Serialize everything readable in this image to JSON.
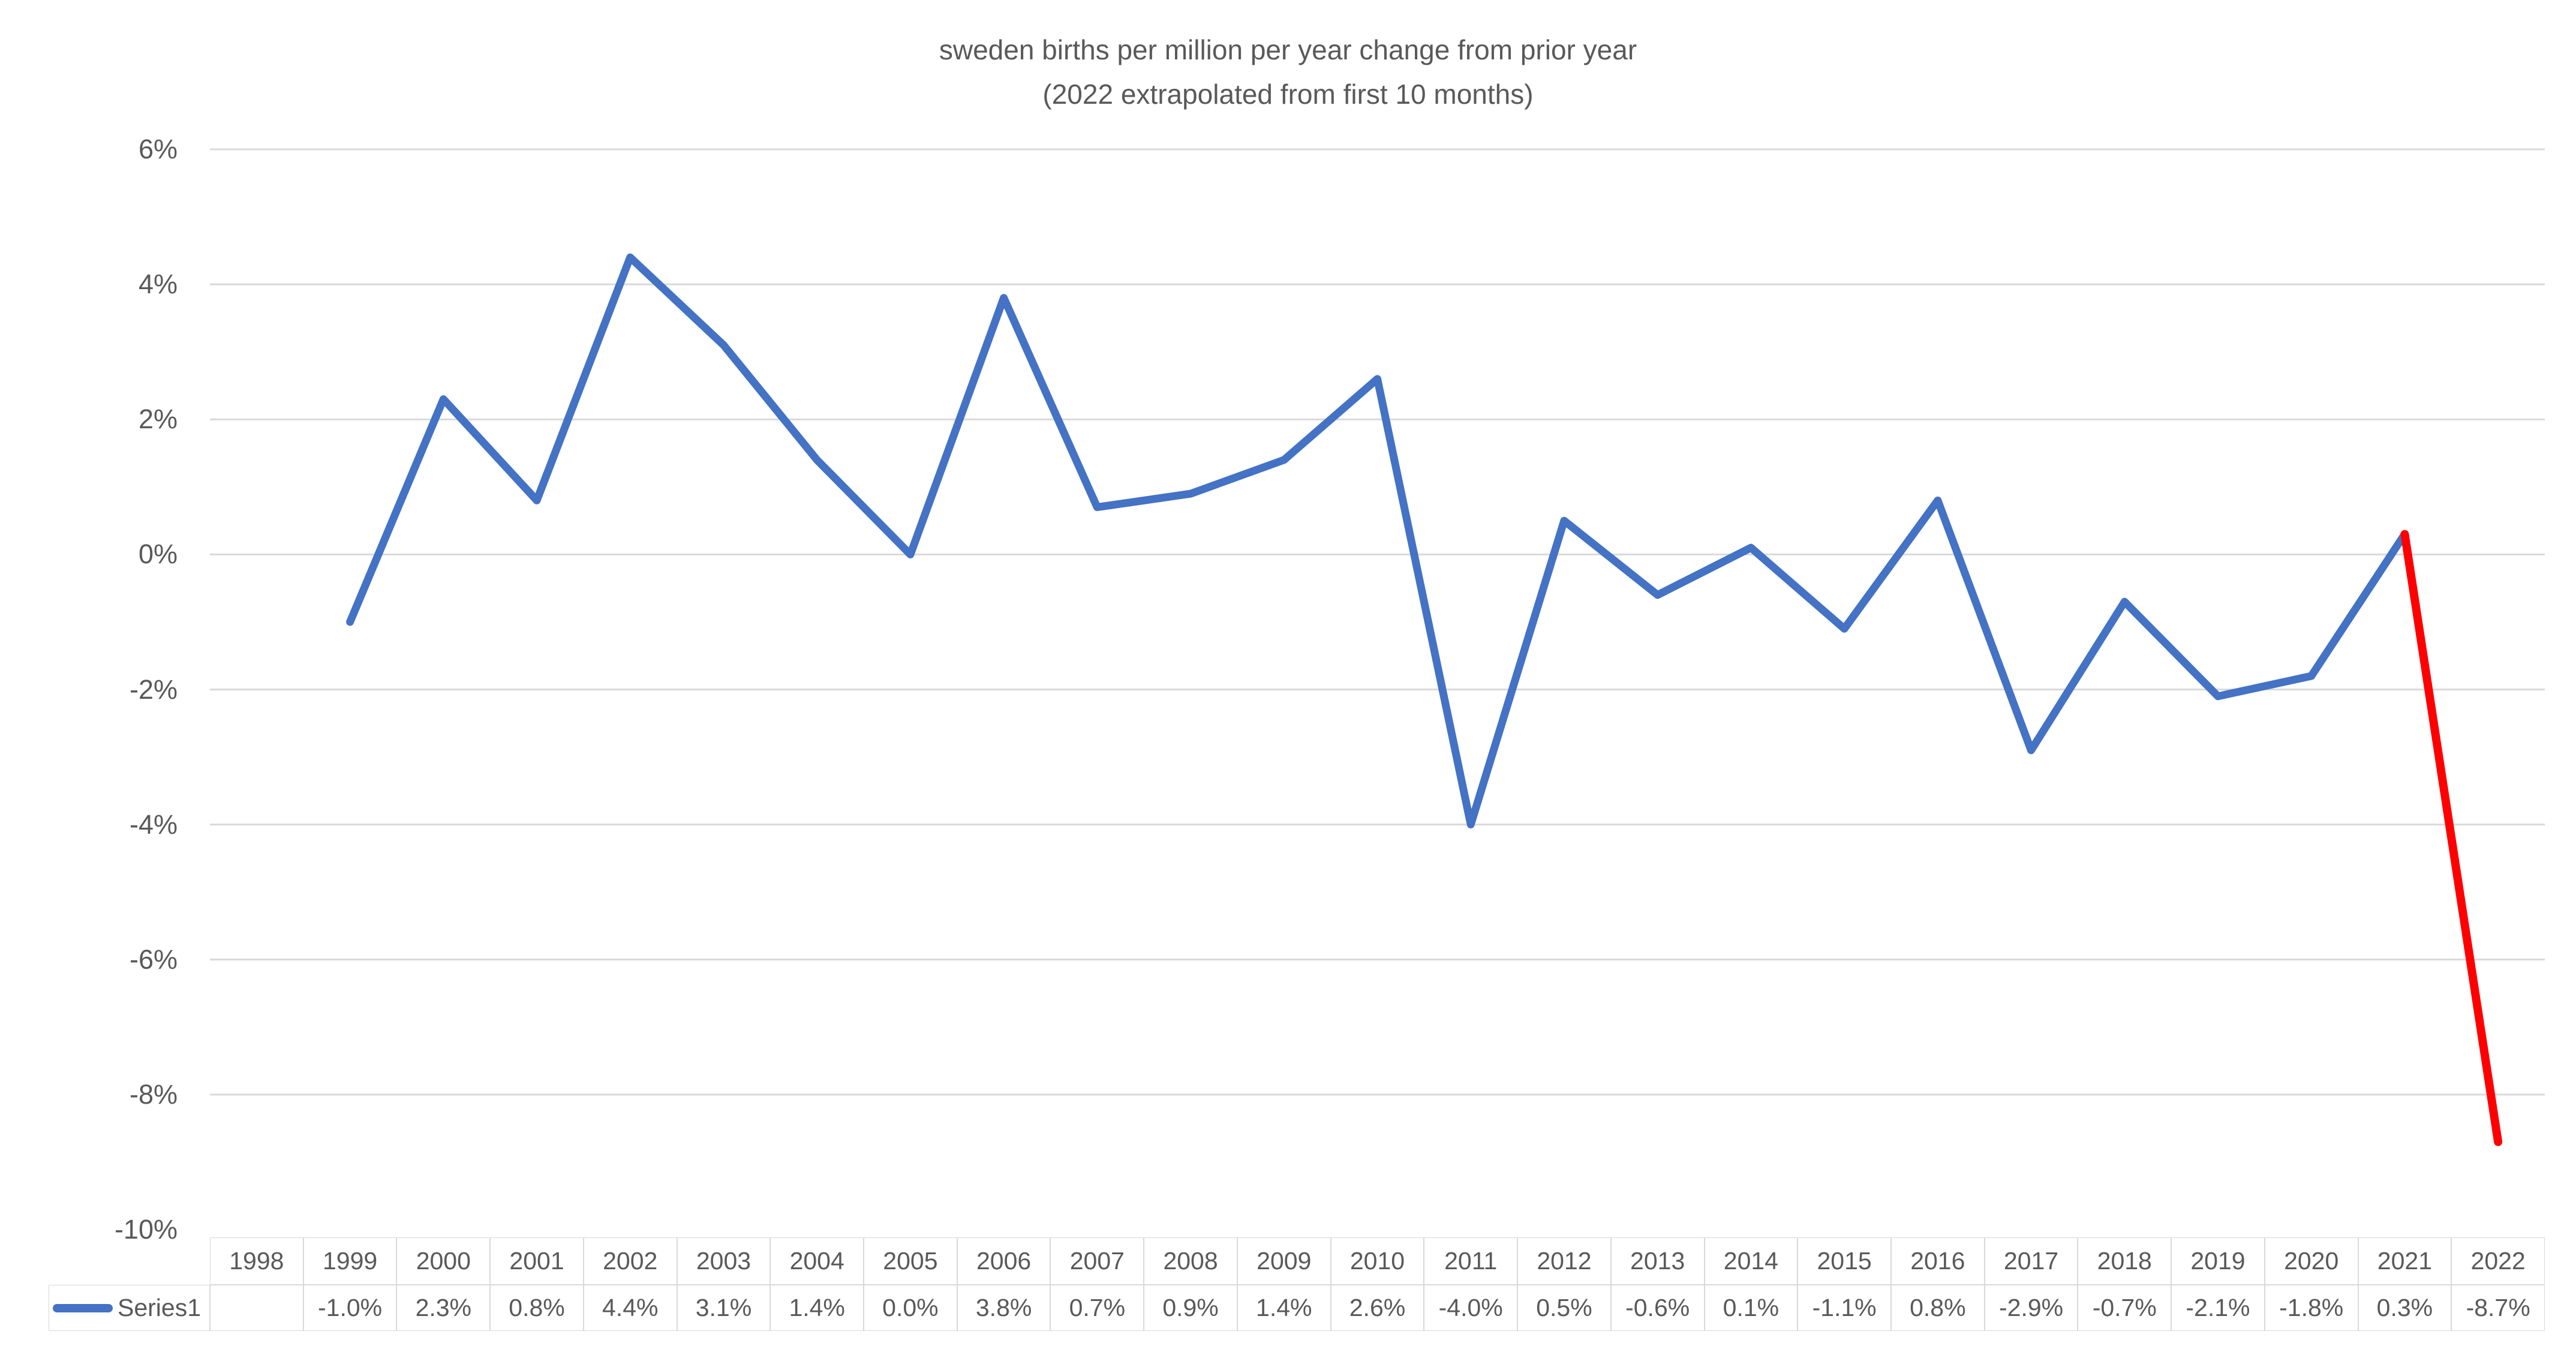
{
  "title": "sweden births per million per year change from prior year",
  "subtitle": "(2022 extrapolated from first 10 months)",
  "legend": {
    "series_label": "Series1"
  },
  "colors": {
    "series_blue": "#4472C4",
    "extrapolated_red": "#FF0000",
    "gridline": "#D9D9D9",
    "table_border": "#D9D9D9",
    "text": "#595959"
  },
  "y_axis": {
    "tick_labels": [
      "6%",
      "4%",
      "2%",
      "0%",
      "-2%",
      "-4%",
      "-6%",
      "-8%",
      "-10%"
    ],
    "tick_values": [
      6,
      4,
      2,
      0,
      -2,
      -4,
      -6,
      -8,
      -10
    ],
    "min": -10,
    "max": 6
  },
  "chart_data": {
    "type": "line",
    "title": "sweden births per million per year change from prior year",
    "subtitle": "(2022 extrapolated from first 10 months)",
    "categories": [
      "1998",
      "1999",
      "2000",
      "2001",
      "2002",
      "2003",
      "2004",
      "2005",
      "2006",
      "2007",
      "2008",
      "2009",
      "2010",
      "2011",
      "2012",
      "2013",
      "2014",
      "2015",
      "2016",
      "2017",
      "2018",
      "2019",
      "2020",
      "2021",
      "2022"
    ],
    "series": [
      {
        "name": "Series1",
        "color": "#4472C4",
        "values": [
          null,
          -1.0,
          2.3,
          0.8,
          4.4,
          3.1,
          1.4,
          0.0,
          3.8,
          0.7,
          0.9,
          1.4,
          2.6,
          -4.0,
          0.5,
          -0.6,
          0.1,
          -1.1,
          0.8,
          -2.9,
          -0.7,
          -2.1,
          -1.8,
          0.3,
          -8.7
        ],
        "display_values": [
          "",
          "-1.0%",
          "2.3%",
          "0.8%",
          "4.4%",
          "3.1%",
          "1.4%",
          "0.0%",
          "3.8%",
          "0.7%",
          "0.9%",
          "1.4%",
          "2.6%",
          "-4.0%",
          "0.5%",
          "-0.6%",
          "0.1%",
          "-1.1%",
          "0.8%",
          "-2.9%",
          "-0.7%",
          "-2.1%",
          "-1.8%",
          "0.3%",
          "-8.7%"
        ]
      }
    ],
    "extrapolated_segment": {
      "from_year": "2021",
      "to_year": "2022",
      "color": "#FF0000"
    },
    "ylim": [
      -10,
      6
    ],
    "grid": true,
    "legend_position": "data-table-left",
    "xlabel": "",
    "ylabel": ""
  }
}
